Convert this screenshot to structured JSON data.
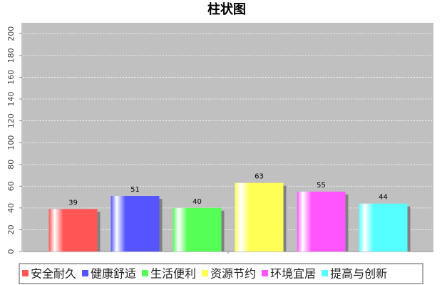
{
  "chart_data": {
    "type": "bar",
    "title": "柱状图",
    "categories": [
      null
    ],
    "series": [
      {
        "name": "安全耐久",
        "color": "#ff5555",
        "values": [
          39
        ]
      },
      {
        "name": "健康舒适",
        "color": "#5555ff",
        "values": [
          51
        ]
      },
      {
        "name": "生活便利",
        "color": "#55ff55",
        "values": [
          40
        ]
      },
      {
        "name": "资源节约",
        "color": "#ffff55",
        "values": [
          63
        ]
      },
      {
        "name": "环境宜居",
        "color": "#ff55ff",
        "values": [
          55
        ]
      },
      {
        "name": "提高与创新",
        "color": "#55ffff",
        "values": [
          44
        ]
      }
    ],
    "ylim": [
      0,
      210
    ],
    "yticks": [
      0,
      20,
      40,
      60,
      80,
      100,
      120,
      140,
      160,
      180,
      200
    ],
    "grid": true,
    "legend": "bottom"
  }
}
